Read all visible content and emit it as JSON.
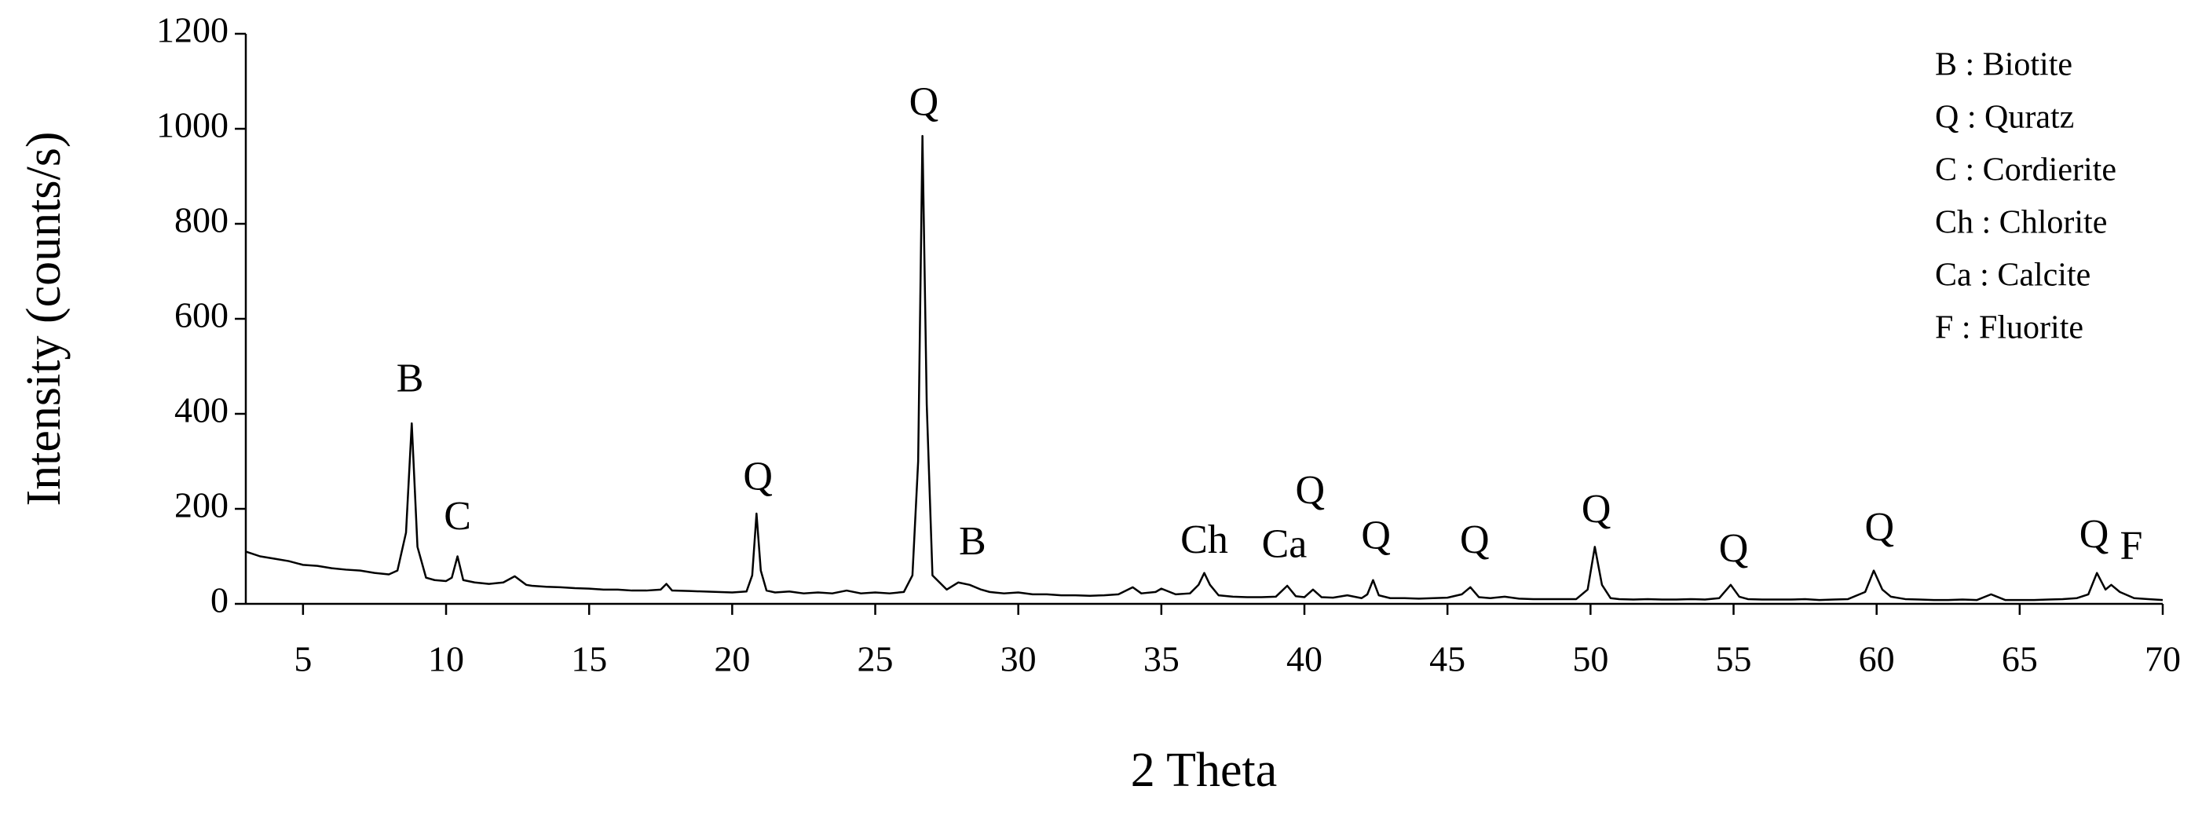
{
  "chart_data": {
    "type": "line",
    "xlabel": "2 Theta",
    "ylabel": "Intensity (counts/s)",
    "color": "#000000",
    "xlim": [
      3,
      70
    ],
    "xticks": [
      5,
      10,
      15,
      20,
      25,
      30,
      35,
      40,
      45,
      50,
      55,
      60,
      65,
      70
    ],
    "ylim": [
      0,
      1200
    ],
    "yticks": [
      0,
      200,
      400,
      600,
      800,
      1000,
      1200
    ],
    "grid": false,
    "legend_position": "upper right",
    "legend_text": [
      "B : Biotite",
      "Q : Quratz",
      "C : Cordierite",
      "Ch : Chlorite",
      "Ca : Calcite",
      "F : Fluorite"
    ],
    "annotations": [
      {
        "text": "B",
        "x": 8.74,
        "y": 467
      },
      {
        "text": "C",
        "x": 10.4,
        "y": 177
      },
      {
        "text": "Q",
        "x": 20.9,
        "y": 260
      },
      {
        "text": "Q",
        "x": 26.7,
        "y": 1049
      },
      {
        "text": "B",
        "x": 28.4,
        "y": 124
      },
      {
        "text": "Ch",
        "x": 36.5,
        "y": 127
      },
      {
        "text": "Ca",
        "x": 39.3,
        "y": 118
      },
      {
        "text": "Q",
        "x": 40.2,
        "y": 231
      },
      {
        "text": "Q",
        "x": 42.5,
        "y": 136
      },
      {
        "text": "Q",
        "x": 45.95,
        "y": 127
      },
      {
        "text": "Q",
        "x": 50.2,
        "y": 192
      },
      {
        "text": "Q",
        "x": 55.0,
        "y": 109
      },
      {
        "text": "Q",
        "x": 60.1,
        "y": 154
      },
      {
        "text": "Q",
        "x": 67.6,
        "y": 139
      },
      {
        "text": "F",
        "x": 68.9,
        "y": 115
      }
    ],
    "x": [
      3,
      3.5,
      4,
      4.5,
      5,
      5.5,
      6,
      6.5,
      7,
      7.5,
      8,
      8.3,
      8.6,
      8.8,
      9.0,
      9.3,
      9.6,
      10,
      10.2,
      10.4,
      10.6,
      11,
      11.5,
      12,
      12.4,
      12.8,
      13,
      13.5,
      14,
      14.5,
      15,
      15.5,
      16,
      16.5,
      17,
      17.5,
      17.7,
      17.9,
      18.5,
      19,
      19.5,
      20,
      20.5,
      20.7,
      20.85,
      21.0,
      21.2,
      21.5,
      22,
      22.5,
      23,
      23.5,
      24,
      24.5,
      25,
      25.5,
      26,
      26.3,
      26.5,
      26.65,
      26.8,
      27.0,
      27.5,
      27.9,
      28.3,
      28.7,
      29,
      29.5,
      30,
      30.5,
      31,
      31.5,
      32,
      32.5,
      33,
      33.5,
      34,
      34.3,
      34.8,
      35,
      35.5,
      36,
      36.3,
      36.5,
      36.7,
      37,
      37.5,
      38,
      38.5,
      39,
      39.4,
      39.7,
      40,
      40.3,
      40.6,
      41,
      41.5,
      42,
      42.2,
      42.4,
      42.6,
      43,
      43.5,
      44,
      44.5,
      45,
      45.5,
      45.8,
      46.1,
      46.5,
      47,
      47.5,
      48,
      48.5,
      49,
      49.5,
      49.9,
      50.15,
      50.4,
      50.7,
      51,
      51.5,
      52,
      52.5,
      53,
      53.5,
      54,
      54.5,
      54.9,
      55.2,
      55.5,
      56,
      56.5,
      57,
      57.5,
      58,
      58.5,
      59,
      59.6,
      59.9,
      60.2,
      60.5,
      61,
      61.5,
      62,
      62.5,
      63,
      63.5,
      64,
      64.5,
      65,
      65.5,
      66,
      66.5,
      67,
      67.4,
      67.7,
      68.0,
      68.2,
      68.5,
      69,
      69.5,
      70
    ],
    "values": [
      110,
      100,
      95,
      90,
      82,
      80,
      75,
      72,
      70,
      65,
      62,
      70,
      150,
      380,
      120,
      55,
      50,
      48,
      55,
      100,
      50,
      45,
      42,
      45,
      58,
      40,
      38,
      36,
      35,
      33,
      32,
      30,
      30,
      28,
      28,
      30,
      42,
      28,
      27,
      26,
      25,
      24,
      26,
      60,
      190,
      70,
      28,
      24,
      26,
      22,
      24,
      22,
      28,
      22,
      24,
      22,
      25,
      60,
      300,
      985,
      420,
      60,
      30,
      45,
      40,
      30,
      25,
      22,
      24,
      20,
      20,
      18,
      18,
      17,
      18,
      20,
      35,
      22,
      25,
      32,
      20,
      22,
      40,
      65,
      40,
      18,
      15,
      14,
      14,
      15,
      38,
      16,
      14,
      30,
      14,
      13,
      18,
      12,
      20,
      50,
      18,
      12,
      12,
      11,
      12,
      13,
      20,
      35,
      14,
      12,
      15,
      11,
      10,
      10,
      10,
      10,
      30,
      120,
      40,
      12,
      10,
      9,
      10,
      9,
      9,
      10,
      9,
      12,
      40,
      15,
      10,
      9,
      9,
      9,
      10,
      8,
      9,
      10,
      25,
      70,
      30,
      15,
      10,
      9,
      8,
      8,
      9,
      8,
      20,
      8,
      8,
      8,
      9,
      10,
      12,
      20,
      65,
      30,
      40,
      25,
      12,
      10,
      8
    ]
  }
}
